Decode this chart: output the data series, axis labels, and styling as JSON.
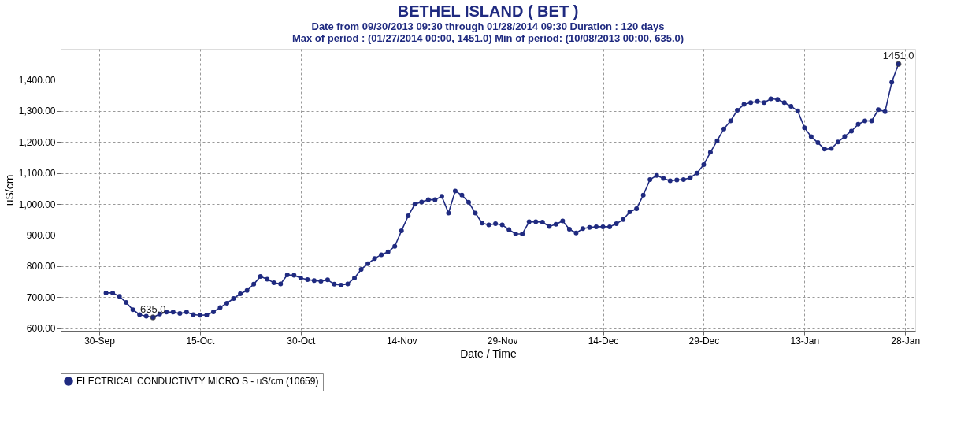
{
  "chart_data": {
    "type": "line",
    "title": "BETHEL ISLAND ( BET )",
    "subtitle": "Date from 09/30/2013 09:30 through 01/28/2014 09:30 Duration : 120 days",
    "xlabel": "Date / Time",
    "ylabel": "uS/cm",
    "annotations": [
      "Max of period : (01/27/2014 00:00, 1451.0)  Min of period: (10/08/2013 00:00,  635.0)",
      {
        "text": "635.0",
        "x": "2013-10-08",
        "y": 635
      },
      {
        "text": "1451.0",
        "x": "2014-01-27",
        "y": 1451
      }
    ],
    "series": [
      {
        "name": "ELECTRICAL CONDUCTIVTY MICRO S - uS/cm (10659)",
        "color": "#1f2a80",
        "x": [
          "2013-10-01",
          "2013-10-02",
          "2013-10-03",
          "2013-10-04",
          "2013-10-05",
          "2013-10-06",
          "2013-10-07",
          "2013-10-08",
          "2013-10-09",
          "2013-10-10",
          "2013-10-11",
          "2013-10-12",
          "2013-10-13",
          "2013-10-14",
          "2013-10-15",
          "2013-10-16",
          "2013-10-17",
          "2013-10-18",
          "2013-10-19",
          "2013-10-20",
          "2013-10-21",
          "2013-10-22",
          "2013-10-23",
          "2013-10-24",
          "2013-10-25",
          "2013-10-26",
          "2013-10-27",
          "2013-10-28",
          "2013-10-29",
          "2013-10-30",
          "2013-10-31",
          "2013-11-01",
          "2013-11-02",
          "2013-11-03",
          "2013-11-04",
          "2013-11-05",
          "2013-11-06",
          "2013-11-07",
          "2013-11-08",
          "2013-11-09",
          "2013-11-10",
          "2013-11-11",
          "2013-11-12",
          "2013-11-13",
          "2013-11-14",
          "2013-11-15",
          "2013-11-16",
          "2013-11-17",
          "2013-11-18",
          "2013-11-19",
          "2013-11-20",
          "2013-11-21",
          "2013-11-22",
          "2013-11-23",
          "2013-11-24",
          "2013-11-25",
          "2013-11-26",
          "2013-11-27",
          "2013-11-28",
          "2013-11-29",
          "2013-11-30",
          "2013-12-01",
          "2013-12-02",
          "2013-12-03",
          "2013-12-04",
          "2013-12-05",
          "2013-12-06",
          "2013-12-07",
          "2013-12-08",
          "2013-12-09",
          "2013-12-10",
          "2013-12-11",
          "2013-12-12",
          "2013-12-13",
          "2013-12-14",
          "2013-12-15",
          "2013-12-16",
          "2013-12-17",
          "2013-12-18",
          "2013-12-19",
          "2013-12-20",
          "2013-12-21",
          "2013-12-22",
          "2013-12-23",
          "2013-12-24",
          "2013-12-25",
          "2013-12-26",
          "2013-12-27",
          "2013-12-28",
          "2013-12-29",
          "2013-12-30",
          "2013-12-31",
          "2014-01-01",
          "2014-01-02",
          "2014-01-03",
          "2014-01-04",
          "2014-01-05",
          "2014-01-06",
          "2014-01-07",
          "2014-01-08",
          "2014-01-09",
          "2014-01-10",
          "2014-01-11",
          "2014-01-12",
          "2014-01-13",
          "2014-01-14",
          "2014-01-15",
          "2014-01-16",
          "2014-01-17",
          "2014-01-18",
          "2014-01-19",
          "2014-01-20",
          "2014-01-21",
          "2014-01-22",
          "2014-01-23",
          "2014-01-24",
          "2014-01-25",
          "2014-01-26",
          "2014-01-27"
        ],
        "values": [
          714,
          714,
          703,
          683,
          660,
          644,
          639,
          635,
          646,
          652,
          652,
          648,
          652,
          644,
          642,
          643,
          653,
          667,
          681,
          696,
          711,
          722,
          742,
          767,
          758,
          747,
          743,
          772,
          771,
          762,
          757,
          754,
          752,
          756,
          742,
          739,
          743,
          762,
          790,
          808,
          825,
          837,
          846,
          864,
          914,
          962,
          1000,
          1007,
          1014,
          1014,
          1025,
          971,
          1042,
          1029,
          1006,
          971,
          939,
          933,
          937,
          933,
          918,
          904,
          904,
          943,
          943,
          942,
          928,
          935,
          946,
          919,
          907,
          921,
          925,
          927,
          927,
          927,
          937,
          950,
          975,
          985,
          1029,
          1079,
          1092,
          1083,
          1075,
          1078,
          1079,
          1085,
          1100,
          1127,
          1167,
          1204,
          1242,
          1268,
          1302,
          1321,
          1327,
          1331,
          1327,
          1339,
          1337,
          1327,
          1315,
          1300,
          1246,
          1217,
          1198,
          1177,
          1179,
          1200,
          1218,
          1235,
          1257,
          1268,
          1268,
          1304,
          1298,
          1392,
          1451
        ]
      }
    ],
    "xlim": [
      "2013-09-24T06:00",
      "2014-01-29T12:00"
    ],
    "xticks": [
      {
        "value": "2013-09-30",
        "label": "30-Sep"
      },
      {
        "value": "2013-10-15",
        "label": "15-Oct"
      },
      {
        "value": "2013-10-30",
        "label": "30-Oct"
      },
      {
        "value": "2013-11-14",
        "label": "14-Nov"
      },
      {
        "value": "2013-11-29",
        "label": "29-Nov"
      },
      {
        "value": "2013-12-14",
        "label": "14-Dec"
      },
      {
        "value": "2013-12-29",
        "label": "29-Dec"
      },
      {
        "value": "2014-01-13",
        "label": "13-Jan"
      },
      {
        "value": "2014-01-28",
        "label": "28-Jan"
      }
    ],
    "ylim": [
      592,
      1500
    ],
    "yticks": [
      {
        "value": 600,
        "label": "600.00"
      },
      {
        "value": 700,
        "label": "700.00"
      },
      {
        "value": 800,
        "label": "800.00"
      },
      {
        "value": 900,
        "label": "900.00"
      },
      {
        "value": 1000,
        "label": "1,000.00"
      },
      {
        "value": 1100,
        "label": "1,100.00"
      },
      {
        "value": 1200,
        "label": "1,200.00"
      },
      {
        "value": 1300,
        "label": "1,300.00"
      },
      {
        "value": 1400,
        "label": "1,400.00"
      }
    ],
    "grid": true,
    "legend": "bottom",
    "marker": "circle",
    "line_style": "solid"
  }
}
